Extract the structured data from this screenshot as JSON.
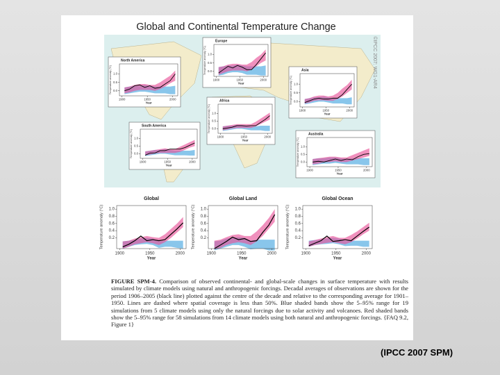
{
  "slide": {
    "caption": "(IPCC 2007 SPM)"
  },
  "figure": {
    "title": "Global and Continental Temperature Change",
    "side_note": "©IPCC 2007: WG1-AR4",
    "caption_label": "FIGURE SPM-4.",
    "caption_text": "Comparison of observed continental- and global-scale changes in surface temperature with results simulated by climate models using natural and anthropogenic forcings. Decadal averages of observations are shown for the period 1906–2005 (black line) plotted against the centre of the decade and relative to the corresponding average for 1901–1950. Lines are dashed where spatial coverage is less than 50%. Blue shaded bands show the 5–95% range for 19 simulations from 5 climate models using only the natural forcings due to solar activity and volcanoes. Red shaded bands show the 5–95% range for 58 simulations from 14 climate models using both natural and anthropogenic forcings. {FAQ 9.2, Figure 1}"
  },
  "chart_data": [
    {
      "type": "band_line",
      "title": "North America",
      "y_label": "Temperature anomaly (°C)",
      "x_label": "Year",
      "x": [
        1905,
        1915,
        1925,
        1935,
        1945,
        1955,
        1965,
        1975,
        1985,
        1995,
        2005
      ],
      "xlim": [
        1895,
        2010
      ],
      "xticks": [
        1900,
        1950,
        2000
      ],
      "ylim": [
        -0.3,
        1.6
      ],
      "yticks": [
        {
          "value": 0,
          "label": "0.0"
        },
        0.5,
        {
          "value": 1,
          "label": "1.0"
        }
      ],
      "series": [
        {
          "color": "#000000",
          "values": [
            0.0,
            0.1,
            0.3,
            0.35,
            0.2,
            0.3,
            0.15,
            0.2,
            0.4,
            0.6,
            1.0
          ]
        }
      ],
      "bands": [
        {
          "color": "#4aa8e0",
          "low": [
            -0.2,
            -0.15,
            -0.1,
            -0.05,
            -0.05,
            -0.1,
            -0.15,
            -0.15,
            -0.15,
            -0.2,
            -0.2
          ],
          "high": [
            0.2,
            0.25,
            0.3,
            0.3,
            0.35,
            0.3,
            0.25,
            0.25,
            0.25,
            0.25,
            0.3
          ]
        },
        {
          "color": "#e8559a",
          "low": [
            -0.15,
            -0.1,
            0.0,
            0.05,
            0.05,
            0.05,
            0.0,
            0.1,
            0.25,
            0.45,
            0.6
          ],
          "high": [
            0.2,
            0.25,
            0.35,
            0.4,
            0.4,
            0.35,
            0.35,
            0.5,
            0.7,
            0.9,
            1.2
          ]
        }
      ]
    },
    {
      "type": "band_line",
      "title": "Europe",
      "y_label": "Temperature anomaly (°C)",
      "x_label": "Year",
      "x": [
        1905,
        1915,
        1925,
        1935,
        1945,
        1955,
        1965,
        1975,
        1985,
        1995,
        2005
      ],
      "xlim": [
        1895,
        2010
      ],
      "xticks": [
        1900,
        1950,
        2000
      ],
      "ylim": [
        -0.3,
        1.6
      ],
      "yticks": [
        {
          "value": 0,
          "label": "0.0"
        },
        0.5,
        {
          "value": 1,
          "label": "1.0"
        }
      ],
      "series": [
        {
          "color": "#000000",
          "values": [
            -0.1,
            0.1,
            0.3,
            0.2,
            0.35,
            0.25,
            0.1,
            0.1,
            0.4,
            0.75,
            1.1
          ]
        }
      ],
      "bands": [
        {
          "color": "#4aa8e0",
          "low": [
            -0.25,
            -0.2,
            -0.1,
            -0.05,
            -0.05,
            -0.1,
            -0.2,
            -0.2,
            -0.2,
            -0.25,
            -0.25
          ],
          "high": [
            0.25,
            0.3,
            0.35,
            0.35,
            0.4,
            0.35,
            0.3,
            0.3,
            0.3,
            0.3,
            0.35
          ]
        },
        {
          "color": "#e8559a",
          "low": [
            -0.2,
            -0.1,
            0.0,
            0.05,
            0.05,
            0.05,
            0.0,
            0.1,
            0.3,
            0.5,
            0.65
          ],
          "high": [
            0.25,
            0.3,
            0.4,
            0.45,
            0.45,
            0.4,
            0.4,
            0.55,
            0.8,
            1.0,
            1.3
          ]
        }
      ]
    },
    {
      "type": "band_line",
      "title": "Asia",
      "y_label": "Temperature anomaly (°C)",
      "x_label": "Year",
      "x": [
        1905,
        1915,
        1925,
        1935,
        1945,
        1955,
        1965,
        1975,
        1985,
        1995,
        2005
      ],
      "xlim": [
        1895,
        2010
      ],
      "xticks": [
        1900,
        1950,
        2000
      ],
      "ylim": [
        -0.3,
        1.6
      ],
      "yticks": [
        {
          "value": 0,
          "label": "0.0"
        },
        0.5,
        {
          "value": 1,
          "label": "1.0"
        }
      ],
      "series": [
        {
          "color": "#000000",
          "values": [
            -0.05,
            0.05,
            0.15,
            0.2,
            0.15,
            0.15,
            0.2,
            0.2,
            0.4,
            0.7,
            1.0
          ]
        }
      ],
      "bands": [
        {
          "color": "#4aa8e0",
          "low": [
            -0.15,
            -0.1,
            -0.05,
            0.0,
            0.0,
            -0.05,
            -0.1,
            -0.1,
            -0.1,
            -0.15,
            -0.15
          ],
          "high": [
            0.15,
            0.2,
            0.25,
            0.25,
            0.3,
            0.25,
            0.2,
            0.2,
            0.2,
            0.2,
            0.25
          ]
        },
        {
          "color": "#e8559a",
          "low": [
            -0.1,
            -0.05,
            0.05,
            0.08,
            0.08,
            0.05,
            0.05,
            0.15,
            0.3,
            0.5,
            0.7
          ],
          "high": [
            0.15,
            0.2,
            0.3,
            0.35,
            0.35,
            0.3,
            0.35,
            0.5,
            0.75,
            0.95,
            1.25
          ]
        }
      ]
    },
    {
      "type": "band_line",
      "title": "Africa",
      "y_label": "Temperature anomaly (°C)",
      "x_label": "Year",
      "x": [
        1905,
        1915,
        1925,
        1935,
        1945,
        1955,
        1965,
        1975,
        1985,
        1995,
        2005
      ],
      "xlim": [
        1895,
        2010
      ],
      "xticks": [
        1900,
        1950,
        2000
      ],
      "ylim": [
        -0.3,
        1.6
      ],
      "yticks": [
        {
          "value": 0,
          "label": "0.0"
        },
        0.5,
        {
          "value": 1,
          "label": "1.0"
        }
      ],
      "series": [
        {
          "color": "#000000",
          "values": [
            0.0,
            0.05,
            0.1,
            0.2,
            0.2,
            0.18,
            0.2,
            0.2,
            0.4,
            0.6,
            0.85
          ]
        }
      ],
      "bands": [
        {
          "color": "#4aa8e0",
          "low": [
            -0.15,
            -0.1,
            -0.05,
            0.0,
            0.0,
            -0.05,
            -0.1,
            -0.1,
            -0.1,
            -0.15,
            -0.15
          ],
          "high": [
            0.15,
            0.2,
            0.2,
            0.25,
            0.25,
            0.2,
            0.15,
            0.15,
            0.2,
            0.2,
            0.2
          ]
        },
        {
          "color": "#e8559a",
          "low": [
            -0.1,
            -0.05,
            0.02,
            0.05,
            0.05,
            0.05,
            0.05,
            0.15,
            0.3,
            0.45,
            0.6
          ],
          "high": [
            0.15,
            0.2,
            0.25,
            0.3,
            0.3,
            0.3,
            0.3,
            0.45,
            0.65,
            0.85,
            1.05
          ]
        }
      ]
    },
    {
      "type": "band_line",
      "title": "South America",
      "y_label": "Temperature anomaly (°C)",
      "x_label": "Year",
      "x": [
        1905,
        1915,
        1925,
        1935,
        1945,
        1955,
        1965,
        1975,
        1985,
        1995,
        2005
      ],
      "xlim": [
        1895,
        2010
      ],
      "xticks": [
        1900,
        1950,
        2000
      ],
      "ylim": [
        -0.3,
        1.6
      ],
      "yticks": [
        {
          "value": 0,
          "label": "0.0"
        },
        0.5,
        {
          "value": 1,
          "label": "1.0"
        }
      ],
      "series": [
        {
          "color": "#000000",
          "values": [
            -0.1,
            0.05,
            0.05,
            0.2,
            0.2,
            0.3,
            0.3,
            0.3,
            0.4,
            0.55,
            0.7
          ]
        }
      ],
      "bands": [
        {
          "color": "#4aa8e0",
          "low": [
            -0.15,
            -0.1,
            -0.05,
            0.0,
            0.0,
            -0.05,
            -0.1,
            -0.1,
            -0.1,
            -0.12,
            -0.12
          ],
          "high": [
            0.15,
            0.2,
            0.25,
            0.25,
            0.3,
            0.25,
            0.2,
            0.2,
            0.2,
            0.2,
            0.25
          ]
        },
        {
          "color": "#e8559a",
          "low": [
            -0.1,
            -0.05,
            0.02,
            0.05,
            0.05,
            0.05,
            0.05,
            0.12,
            0.25,
            0.4,
            0.5
          ],
          "high": [
            0.15,
            0.2,
            0.25,
            0.3,
            0.35,
            0.3,
            0.3,
            0.45,
            0.6,
            0.75,
            0.9
          ]
        }
      ]
    },
    {
      "type": "band_line",
      "title": "Australia",
      "y_label": "Temperature anomaly (°C)",
      "x_label": "Year",
      "x": [
        1905,
        1915,
        1925,
        1935,
        1945,
        1955,
        1965,
        1975,
        1985,
        1995,
        2005
      ],
      "xlim": [
        1895,
        2010
      ],
      "xticks": [
        1900,
        1950,
        2000
      ],
      "ylim": [
        -0.3,
        1.6
      ],
      "yticks": [
        {
          "value": 0,
          "label": "0.0"
        },
        0.5,
        {
          "value": 1,
          "label": "1.0"
        }
      ],
      "series": [
        {
          "color": "#000000",
          "values": [
            0.0,
            0.05,
            0.0,
            0.1,
            0.2,
            0.1,
            0.2,
            0.15,
            0.35,
            0.5,
            0.55
          ]
        }
      ],
      "bands": [
        {
          "color": "#4aa8e0",
          "low": [
            -0.2,
            -0.15,
            -0.1,
            -0.1,
            -0.05,
            -0.1,
            -0.15,
            -0.15,
            -0.15,
            -0.2,
            -0.2
          ],
          "high": [
            0.2,
            0.25,
            0.25,
            0.3,
            0.3,
            0.25,
            0.2,
            0.25,
            0.25,
            0.25,
            0.25
          ]
        },
        {
          "color": "#e8559a",
          "low": [
            -0.15,
            -0.1,
            0.0,
            0.0,
            0.05,
            0.0,
            0.0,
            0.1,
            0.2,
            0.3,
            0.4
          ],
          "high": [
            0.2,
            0.25,
            0.3,
            0.35,
            0.35,
            0.3,
            0.3,
            0.45,
            0.6,
            0.75,
            0.9
          ]
        }
      ]
    },
    {
      "type": "band_line",
      "title": "Global",
      "y_label": "Temperature anomaly (°C)",
      "x_label": "Year",
      "x": [
        1905,
        1915,
        1925,
        1935,
        1945,
        1955,
        1965,
        1975,
        1985,
        1995,
        2005
      ],
      "xlim": [
        1895,
        2010
      ],
      "xticks": [
        1900,
        1950,
        2000
      ],
      "ylim": [
        -0.1,
        1.1
      ],
      "yticks": [
        0.2,
        0.4,
        0.6,
        0.8,
        {
          "value": 1,
          "label": "1.0"
        }
      ],
      "series": [
        {
          "color": "#000000",
          "values": [
            -0.05,
            0.02,
            0.12,
            0.25,
            0.12,
            0.15,
            0.12,
            0.15,
            0.3,
            0.45,
            0.62
          ]
        }
      ],
      "bands": [
        {
          "color": "#4aa8e0",
          "low": [
            -0.1,
            -0.05,
            0.0,
            0.02,
            0.03,
            0.0,
            -0.08,
            -0.05,
            -0.05,
            -0.08,
            -0.1
          ],
          "high": [
            0.1,
            0.12,
            0.15,
            0.18,
            0.2,
            0.18,
            0.1,
            0.12,
            0.12,
            0.12,
            0.12
          ]
        },
        {
          "color": "#e8559a",
          "low": [
            -0.1,
            -0.05,
            0.02,
            0.05,
            0.08,
            0.05,
            0.0,
            0.08,
            0.2,
            0.35,
            0.5
          ],
          "high": [
            0.1,
            0.12,
            0.18,
            0.22,
            0.25,
            0.22,
            0.2,
            0.3,
            0.45,
            0.6,
            0.78
          ]
        }
      ]
    },
    {
      "type": "band_line",
      "title": "Global Land",
      "y_label": "Temperature anomaly (°C)",
      "x_label": "Year",
      "x": [
        1905,
        1915,
        1925,
        1935,
        1945,
        1955,
        1965,
        1975,
        1985,
        1995,
        2005
      ],
      "xlim": [
        1895,
        2010
      ],
      "xticks": [
        1900,
        1950,
        2000
      ],
      "ylim": [
        -0.1,
        1.1
      ],
      "yticks": [
        0.2,
        0.4,
        0.6,
        0.8,
        {
          "value": 1,
          "label": "1.0"
        }
      ],
      "series": [
        {
          "color": "#000000",
          "values": [
            -0.1,
            0.0,
            0.1,
            0.22,
            0.15,
            0.18,
            0.1,
            0.12,
            0.35,
            0.55,
            0.85
          ]
        }
      ],
      "bands": [
        {
          "color": "#4aa8e0",
          "low": [
            -0.15,
            -0.1,
            -0.05,
            0.0,
            0.0,
            -0.05,
            -0.12,
            -0.1,
            -0.1,
            -0.15,
            -0.15
          ],
          "high": [
            0.1,
            0.12,
            0.18,
            0.2,
            0.22,
            0.2,
            0.12,
            0.15,
            0.15,
            0.15,
            0.15
          ]
        },
        {
          "color": "#e8559a",
          "low": [
            -0.12,
            -0.08,
            0.0,
            0.05,
            0.08,
            0.05,
            0.0,
            0.1,
            0.25,
            0.45,
            0.65
          ],
          "high": [
            0.12,
            0.15,
            0.22,
            0.28,
            0.3,
            0.25,
            0.25,
            0.38,
            0.55,
            0.75,
            1.0
          ]
        }
      ]
    },
    {
      "type": "band_line",
      "title": "Global Ocean",
      "y_label": "Temperature anomaly (°C)",
      "x_label": "Year",
      "x": [
        1905,
        1915,
        1925,
        1935,
        1945,
        1955,
        1965,
        1975,
        1985,
        1995,
        2005
      ],
      "xlim": [
        1895,
        2010
      ],
      "xticks": [
        1900,
        1950,
        2000
      ],
      "ylim": [
        -0.1,
        1.1
      ],
      "yticks": [
        0.2,
        0.4,
        0.6,
        0.8,
        {
          "value": 1,
          "label": "1.0"
        }
      ],
      "series": [
        {
          "color": "#000000",
          "values": [
            -0.02,
            0.05,
            0.12,
            0.25,
            0.1,
            0.12,
            0.15,
            0.12,
            0.25,
            0.38,
            0.5
          ]
        }
      ],
      "bands": [
        {
          "color": "#4aa8e0",
          "low": [
            -0.05,
            0.0,
            0.02,
            0.03,
            0.05,
            0.02,
            -0.03,
            -0.02,
            -0.02,
            -0.05,
            -0.05
          ],
          "high": [
            0.12,
            0.14,
            0.15,
            0.18,
            0.2,
            0.18,
            0.12,
            0.12,
            0.12,
            0.12,
            0.12
          ]
        },
        {
          "color": "#e8559a",
          "low": [
            -0.05,
            0.0,
            0.03,
            0.06,
            0.08,
            0.05,
            0.02,
            0.08,
            0.18,
            0.3,
            0.4
          ],
          "high": [
            0.1,
            0.14,
            0.18,
            0.22,
            0.25,
            0.2,
            0.2,
            0.28,
            0.38,
            0.5,
            0.62
          ]
        }
      ]
    }
  ]
}
